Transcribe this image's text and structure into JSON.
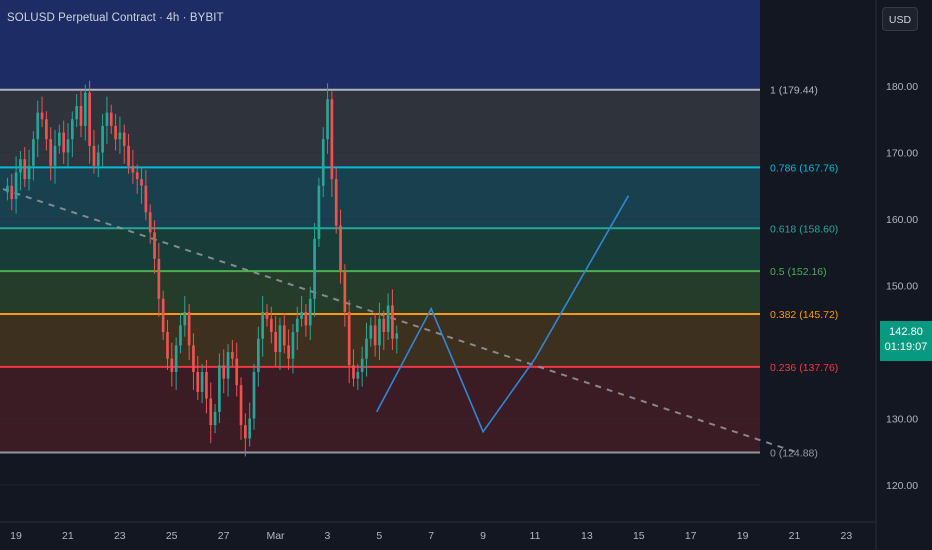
{
  "header": {
    "title": "SOLUSD Perpetual Contract · 4h · BYBIT",
    "currency_button": "USD"
  },
  "last_price": {
    "price": "142.80",
    "countdown": "01:19:07"
  },
  "colors": {
    "background": "#131722",
    "up": "#26a69a",
    "down": "#ef5350",
    "projection": "#2f87d6",
    "trendline": "#9598a1"
  },
  "chart_data": {
    "type": "candlestick",
    "y_axis": {
      "min": 116,
      "max": 193,
      "ticks": [
        120,
        130,
        140,
        150,
        160,
        170,
        180
      ],
      "tick_labels": [
        "120.00",
        "130.00",
        "140.00",
        "150.00",
        "160.00",
        "170.00",
        "180.00"
      ]
    },
    "x_axis": {
      "ticks": [
        {
          "label": "19",
          "t": 0
        },
        {
          "label": "21",
          "t": 2
        },
        {
          "label": "23",
          "t": 4
        },
        {
          "label": "25",
          "t": 6
        },
        {
          "label": "27",
          "t": 8
        },
        {
          "label": "Mar",
          "t": 10
        },
        {
          "label": "3",
          "t": 12
        },
        {
          "label": "5",
          "t": 14
        },
        {
          "label": "7",
          "t": 16
        },
        {
          "label": "9",
          "t": 18
        },
        {
          "label": "11",
          "t": 20
        },
        {
          "label": "13",
          "t": 22
        },
        {
          "label": "15",
          "t": 24
        },
        {
          "label": "17",
          "t": 26
        },
        {
          "label": "19",
          "t": 28
        },
        {
          "label": "21",
          "t": 30
        },
        {
          "label": "23",
          "t": 32
        }
      ]
    },
    "candle_step_days": 0.1667,
    "closes": [
      165,
      163,
      167,
      169,
      166,
      168,
      172,
      176,
      175,
      172,
      168,
      171,
      173,
      170,
      172,
      175,
      177,
      174,
      179,
      171,
      168,
      170,
      174,
      176,
      174,
      172,
      173,
      171,
      168,
      167,
      166,
      165,
      161,
      158,
      154,
      148,
      143,
      139,
      137,
      141,
      144,
      146,
      141,
      137,
      134,
      137,
      133,
      129,
      131,
      138,
      136,
      140,
      139,
      135,
      129,
      127,
      130,
      137,
      142,
      146,
      145,
      143,
      140,
      144,
      141,
      139,
      143,
      145,
      146,
      144,
      148,
      157,
      165,
      172,
      178,
      166,
      159,
      152,
      146,
      138,
      136,
      137,
      139,
      142,
      144,
      141,
      145,
      143,
      147,
      142,
      142.8
    ],
    "fib_levels": [
      {
        "ratio": 1,
        "price": 179.44,
        "label": "1 (179.44)",
        "color": "#b2b5be"
      },
      {
        "ratio": 0.786,
        "price": 167.76,
        "label": "0.786 (167.76)",
        "color": "#00bcd4"
      },
      {
        "ratio": 0.618,
        "price": 158.6,
        "label": "0.618 (158.60)",
        "color": "#26a69a"
      },
      {
        "ratio": 0.5,
        "price": 152.16,
        "label": "0.5 (152.16)",
        "color": "#4caf50"
      },
      {
        "ratio": 0.382,
        "price": 145.72,
        "label": "0.382 (145.72)",
        "color": "#ff9800"
      },
      {
        "ratio": 0.236,
        "price": 137.76,
        "label": "0.236 (137.76)",
        "color": "#f23645"
      },
      {
        "ratio": 0,
        "price": 124.88,
        "label": "0 (124.88)",
        "color": "#9598a1"
      }
    ],
    "trendline": {
      "start": {
        "t": -0.5,
        "price": 164.5
      },
      "end": {
        "t": 30.1,
        "price": 124.9
      }
    },
    "projection_path": [
      {
        "t": 13.9,
        "price": 131.0
      },
      {
        "t": 16.0,
        "price": 146.5
      },
      {
        "t": 18.0,
        "price": 128.0
      },
      {
        "t": 20.0,
        "price": 139.0
      },
      {
        "t": 23.6,
        "price": 163.5
      }
    ]
  }
}
